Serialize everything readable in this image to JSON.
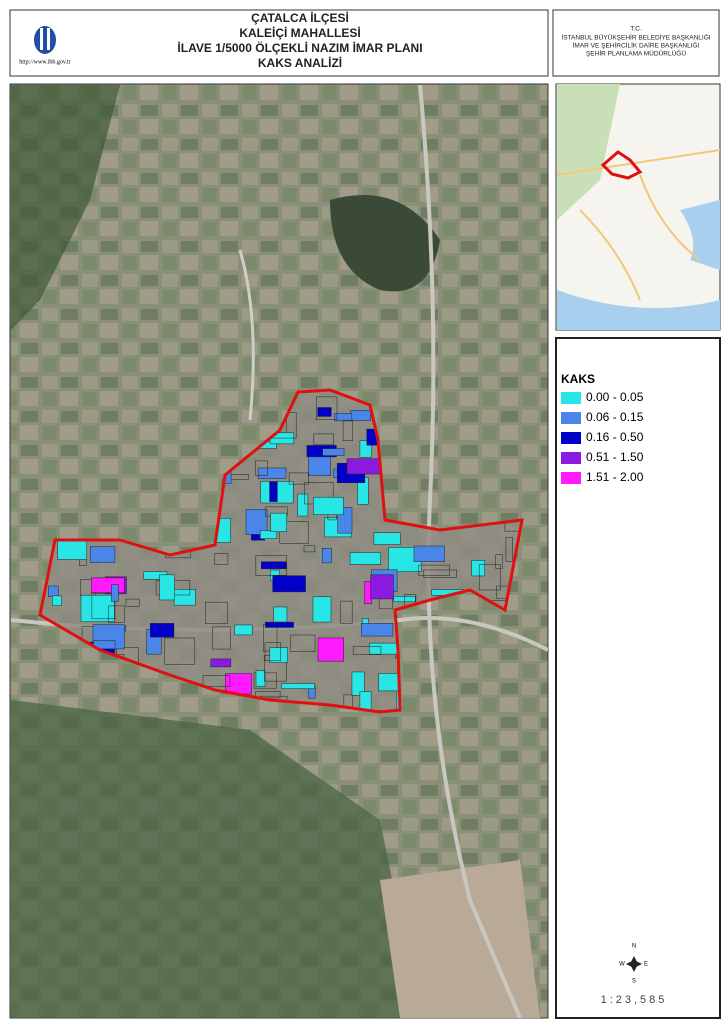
{
  "header": {
    "title": [
      "ÇATALCA İLÇESİ",
      "KALEİÇİ MAHALLESİ",
      "İLAVE 1/5000 ÖLÇEKLİ NAZIM İMAR PLANI",
      "KAKS ANALİZİ"
    ],
    "logo_url": "http://www.ibb.gov.tr",
    "agency": [
      "T.C.",
      "İSTANBUL BÜYÜKŞEHİR BELEDİYE BAŞKANLIĞI",
      "İMAR VE ŞEHİRCİLİK DAİRE BAŞKANLIĞI",
      "ŞEHİR PLANLAMA MÜDÜRLÜĞÜ"
    ]
  },
  "legend": {
    "title": "KAKS",
    "items": [
      {
        "label": "0.00 - 0.05",
        "color": "#29e6e6"
      },
      {
        "label": "0.06 - 0.15",
        "color": "#4a86e8"
      },
      {
        "label": "0.16 - 0.50",
        "color": "#0000c8"
      },
      {
        "label": "0.51 - 1.50",
        "color": "#8a1ae0"
      },
      {
        "label": "1.51 - 2.00",
        "color": "#ff1aff"
      }
    ]
  },
  "compass": {
    "n": "N",
    "w": "W",
    "e": "E",
    "s": "S"
  },
  "scale": "1:23,585"
}
